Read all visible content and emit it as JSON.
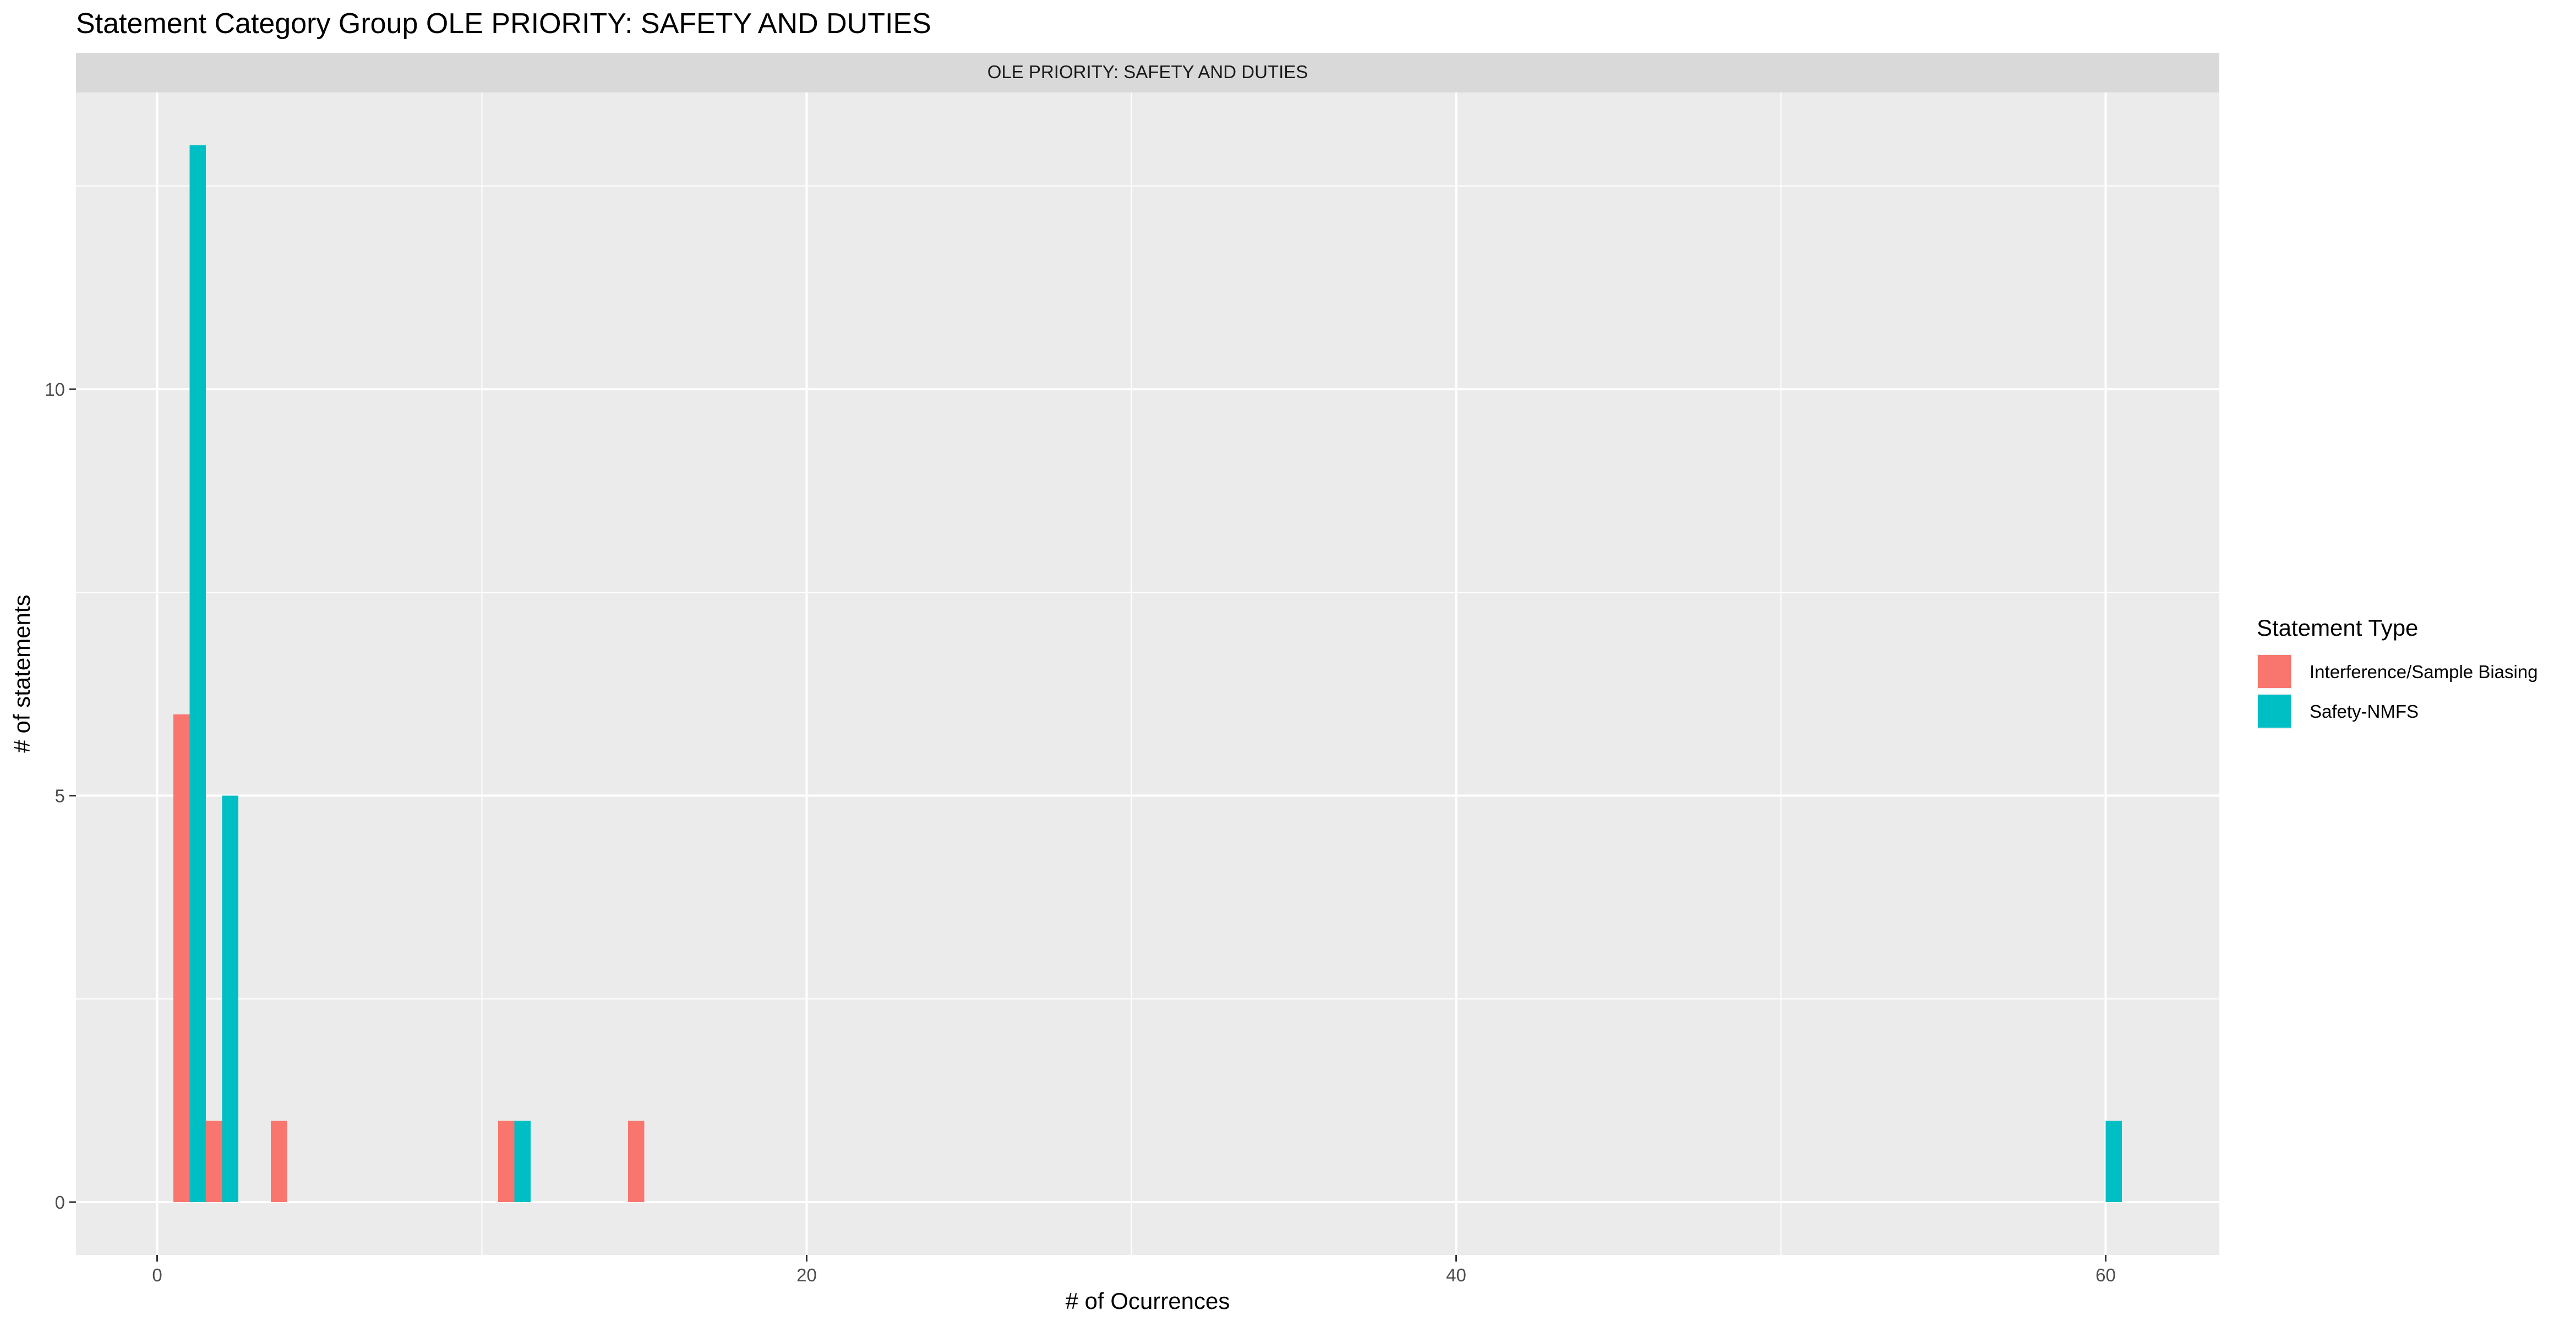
{
  "chart_data": {
    "type": "bar",
    "title": "Statement Category Group OLE PRIORITY: SAFETY AND DUTIES",
    "facet_label": "OLE PRIORITY: SAFETY AND DUTIES",
    "xlabel": "# of Ocurrences",
    "ylabel": "# of statements",
    "xlim": [
      -2.5,
      63.5
    ],
    "ylim": [
      -0.65,
      13.65
    ],
    "x_ticks": [
      0,
      20,
      40,
      60
    ],
    "y_ticks": [
      0,
      5,
      10
    ],
    "grid": true,
    "legend": {
      "title": "Statement Type",
      "position": "right"
    },
    "series": [
      {
        "name": "Interference/Sample Biasing",
        "color": "#F8766D",
        "points": [
          {
            "x": 1,
            "y": 6
          },
          {
            "x": 2,
            "y": 1
          },
          {
            "x": 4,
            "y": 1
          },
          {
            "x": 11,
            "y": 1
          },
          {
            "x": 15,
            "y": 1
          }
        ]
      },
      {
        "name": "Safety-NMFS",
        "color": "#00BFC4",
        "points": [
          {
            "x": 1,
            "y": 13
          },
          {
            "x": 2,
            "y": 5
          },
          {
            "x": 11,
            "y": 1
          },
          {
            "x": 60,
            "y": 1
          }
        ]
      }
    ]
  }
}
